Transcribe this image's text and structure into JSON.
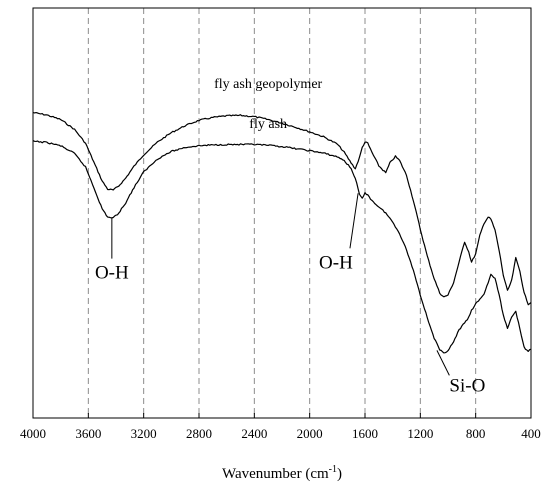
{
  "chart_data": {
    "type": "line",
    "title": "",
    "xlabel": "Wavenumber (cm",
    "xlabel_sup": "-1",
    "xlabel_suffix": ")",
    "ylabel": "",
    "xlim": [
      4000,
      400
    ],
    "x_reversed": true,
    "y_axis_ticks": false,
    "grid": "vertical dashed gray",
    "x_ticks": [
      4000,
      3600,
      3200,
      2800,
      2400,
      2000,
      1600,
      1200,
      800,
      400
    ],
    "x_tick_labels": [
      "4000",
      "3600",
      "3200",
      "2800",
      "2400",
      "2000",
      "1600",
      "1200",
      "800",
      "400"
    ],
    "series": [
      {
        "name": "fly ash geopolymer",
        "color": "#000000",
        "x": [
          4000,
          3900,
          3800,
          3700,
          3620,
          3560,
          3500,
          3460,
          3420,
          3380,
          3330,
          3270,
          3200,
          3100,
          3000,
          2900,
          2800,
          2700,
          2600,
          2500,
          2400,
          2300,
          2200,
          2100,
          2000,
          1900,
          1800,
          1750,
          1700,
          1670,
          1640,
          1620,
          1600,
          1580,
          1550,
          1500,
          1450,
          1420,
          1380,
          1350,
          1300,
          1250,
          1200,
          1150,
          1100,
          1060,
          1030,
          1000,
          960,
          920,
          880,
          850,
          830,
          800,
          770,
          740,
          710,
          690,
          660,
          630,
          600,
          570,
          540,
          510,
          480,
          450,
          420,
          400
        ],
        "y": [
          0.745,
          0.739,
          0.728,
          0.704,
          0.67,
          0.624,
          0.578,
          0.558,
          0.556,
          0.566,
          0.585,
          0.614,
          0.642,
          0.673,
          0.696,
          0.713,
          0.726,
          0.733,
          0.737,
          0.738,
          0.735,
          0.728,
          0.719,
          0.709,
          0.698,
          0.686,
          0.668,
          0.648,
          0.622,
          0.608,
          0.635,
          0.66,
          0.673,
          0.67,
          0.648,
          0.615,
          0.598,
          0.622,
          0.638,
          0.628,
          0.592,
          0.53,
          0.46,
          0.395,
          0.34,
          0.305,
          0.295,
          0.3,
          0.33,
          0.38,
          0.43,
          0.405,
          0.38,
          0.4,
          0.445,
          0.475,
          0.49,
          0.485,
          0.458,
          0.408,
          0.348,
          0.31,
          0.335,
          0.39,
          0.358,
          0.305,
          0.278,
          0.282
        ]
      },
      {
        "name": "fly ash",
        "color": "#000000",
        "x": [
          4000,
          3900,
          3800,
          3700,
          3620,
          3560,
          3500,
          3460,
          3420,
          3380,
          3330,
          3270,
          3200,
          3100,
          3000,
          2900,
          2800,
          2700,
          2600,
          2500,
          2400,
          2300,
          2200,
          2100,
          2000,
          1900,
          1800,
          1750,
          1700,
          1670,
          1640,
          1620,
          1600,
          1580,
          1550,
          1500,
          1450,
          1400,
          1350,
          1300,
          1250,
          1200,
          1150,
          1100,
          1060,
          1030,
          1000,
          960,
          920,
          880,
          850,
          830,
          800,
          770,
          740,
          710,
          690,
          660,
          630,
          600,
          570,
          540,
          510,
          480,
          450,
          420,
          400
        ],
        "y": [
          0.675,
          0.672,
          0.664,
          0.645,
          0.612,
          0.562,
          0.51,
          0.49,
          0.488,
          0.5,
          0.525,
          0.562,
          0.6,
          0.632,
          0.65,
          0.66,
          0.664,
          0.666,
          0.667,
          0.667,
          0.667,
          0.665,
          0.662,
          0.657,
          0.652,
          0.646,
          0.637,
          0.628,
          0.608,
          0.585,
          0.545,
          0.535,
          0.548,
          0.545,
          0.53,
          0.515,
          0.5,
          0.478,
          0.45,
          0.41,
          0.36,
          0.3,
          0.245,
          0.195,
          0.166,
          0.158,
          0.165,
          0.185,
          0.215,
          0.232,
          0.245,
          0.262,
          0.278,
          0.29,
          0.302,
          0.33,
          0.35,
          0.34,
          0.3,
          0.25,
          0.22,
          0.245,
          0.26,
          0.218,
          0.172,
          0.162,
          0.168
        ]
      }
    ],
    "series_labels": [
      {
        "text": "fly ash geopolymer",
        "x": 2300,
        "y": 0.805
      },
      {
        "text": "fly ash",
        "x": 2300,
        "y": 0.707
      }
    ],
    "annotations": [
      {
        "text": "O-H",
        "point": {
          "x": 3430,
          "y": 0.488
        },
        "text_pos": {
          "x": 3430,
          "y": 0.34
        }
      },
      {
        "text": "O-H",
        "point": {
          "x": 1650,
          "y": 0.548
        },
        "text_pos": {
          "x": 1810,
          "y": 0.365
        }
      },
      {
        "text": "Si-O",
        "point": {
          "x": 1080,
          "y": 0.165
        },
        "text_pos": {
          "x": 860,
          "y": 0.065
        }
      }
    ]
  }
}
